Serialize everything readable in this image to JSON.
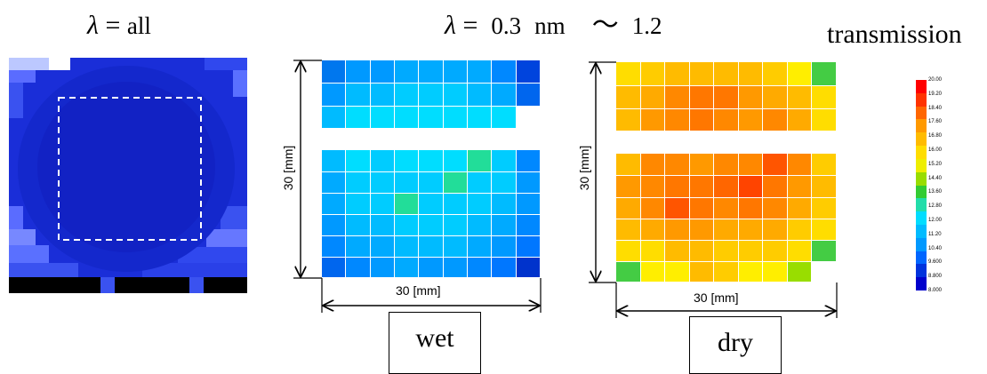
{
  "titles": {
    "all": {
      "symbol": "λ",
      "eq": "=",
      "value": "all"
    },
    "range": {
      "symbol": "λ",
      "eq": "=",
      "start": "0.3",
      "unit": "nm",
      "tilde": "～",
      "end": "1.2"
    }
  },
  "legend": {
    "title": "transmission",
    "labels": [
      "20.00",
      "19.20",
      "18.40",
      "17.60",
      "16.80",
      "16.00",
      "15.20",
      "14.40",
      "13.60",
      "12.80",
      "12.00",
      "11.20",
      "10.40",
      "9.600",
      "8.800",
      "8.000"
    ],
    "colors": [
      "#ff0000",
      "#ff3300",
      "#ff6600",
      "#ff9900",
      "#ffbb00",
      "#ffdd00",
      "#eeee00",
      "#99dd00",
      "#33cc33",
      "#22ddaa",
      "#00ddff",
      "#00bbff",
      "#0099ff",
      "#0066ff",
      "#0033dd",
      "#0000cc"
    ]
  },
  "panels": {
    "wet": {
      "label": "wet",
      "dim_vertical": "30 [mm]",
      "dim_horizontal": "30 [mm]",
      "rows": [
        [
          "#0077ee",
          "#0099ff",
          "#0099ff",
          "#00aaff",
          "#00aaff",
          "#00aaff",
          "#00aaff",
          "#0088ff",
          "#0044dd"
        ],
        [
          "#0099ff",
          "#00bbff",
          "#00bbff",
          "#00ccff",
          "#00ccff",
          "#00ccff",
          "#00bbff",
          "#00aaff",
          "#0066ee"
        ],
        [
          "#00bbff",
          "#00ddff",
          "#00ddff",
          "#00ddff",
          "#00ddff",
          "#00ddff",
          "#00ddff",
          "#00ddff",
          "#ffffff"
        ],
        null,
        [
          "#00bbff",
          "#00ddff",
          "#00ccff",
          "#00ddff",
          "#00ddff",
          "#00ddff",
          "#22dd99",
          "#00ccff",
          "#0088ff"
        ],
        [
          "#00aaff",
          "#00ccff",
          "#00ccff",
          "#00ccff",
          "#00ccff",
          "#22dd99",
          "#00ccff",
          "#00ccff",
          "#0099ff"
        ],
        [
          "#00aaff",
          "#00ccff",
          "#00ccff",
          "#22dd99",
          "#00ccff",
          "#00ccff",
          "#00ccff",
          "#00bbff",
          "#0099ff"
        ],
        [
          "#0099ff",
          "#00bbff",
          "#00bbff",
          "#00ccff",
          "#00ccff",
          "#00ccff",
          "#00bbff",
          "#00aaff",
          "#0088ff"
        ],
        [
          "#0088ff",
          "#00aaff",
          "#00aaff",
          "#00bbff",
          "#00bbff",
          "#00bbff",
          "#00aaff",
          "#0099ff",
          "#0077ff"
        ],
        [
          "#0066ee",
          "#0088ff",
          "#0099ff",
          "#00aaff",
          "#0099ff",
          "#0099ff",
          "#0088ff",
          "#0077ff",
          "#0033cc"
        ]
      ]
    },
    "dry": {
      "label": "dry",
      "dim_vertical": "30 [mm]",
      "dim_horizontal": "30 [mm]",
      "rows": [
        [
          "#ffdd00",
          "#ffcc00",
          "#ffbb00",
          "#ffbb00",
          "#ffbb00",
          "#ffbb00",
          "#ffcc00",
          "#ffee00",
          "#44cc44"
        ],
        [
          "#ffbb00",
          "#ffaa00",
          "#ff8800",
          "#ff7700",
          "#ff7700",
          "#ff9900",
          "#ffaa00",
          "#ffbb00",
          "#ffdd00"
        ],
        [
          "#ffbb00",
          "#ff9900",
          "#ff8800",
          "#ff7700",
          "#ff8800",
          "#ff9900",
          "#ff8800",
          "#ffaa00",
          "#ffdd00"
        ],
        null,
        [
          "#ffbb00",
          "#ff8800",
          "#ff8800",
          "#ff9900",
          "#ff8800",
          "#ff8800",
          "#ff5500",
          "#ff8800",
          "#ffcc00"
        ],
        [
          "#ff9900",
          "#ff8800",
          "#ff7700",
          "#ff7700",
          "#ff6600",
          "#ff4400",
          "#ff7700",
          "#ff9900",
          "#ffbb00"
        ],
        [
          "#ffaa00",
          "#ff8800",
          "#ff5500",
          "#ff7700",
          "#ff8800",
          "#ff7700",
          "#ff8800",
          "#ffaa00",
          "#ffcc00"
        ],
        [
          "#ffbb00",
          "#ffaa00",
          "#ff9900",
          "#ff9900",
          "#ffaa00",
          "#ffaa00",
          "#ffaa00",
          "#ffcc00",
          "#ffdd00"
        ],
        [
          "#ffdd00",
          "#ffdd00",
          "#ffbb00",
          "#ffbb00",
          "#ffcc00",
          "#ffcc00",
          "#ffcc00",
          "#ffdd00",
          "#44cc44"
        ],
        [
          "#44cc44",
          "#ffee00",
          "#ffee00",
          "#ffbb00",
          "#ffcc00",
          "#ffee00",
          "#ffee00",
          "#99dd00",
          "#ffffff"
        ]
      ]
    }
  }
}
